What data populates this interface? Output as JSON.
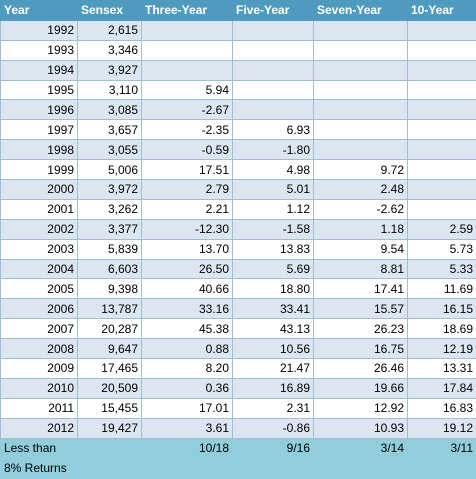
{
  "headers": [
    "Year",
    "Sensex",
    "Three-Year",
    "Five-Year",
    "Seven-Year",
    "10-Year"
  ],
  "rows": [
    [
      "1992",
      "2,615",
      "",
      "",
      "",
      ""
    ],
    [
      "1993",
      "3,346",
      "",
      "",
      "",
      ""
    ],
    [
      "1994",
      "3,927",
      "",
      "",
      "",
      ""
    ],
    [
      "1995",
      "3,110",
      "5.94",
      "",
      "",
      ""
    ],
    [
      "1996",
      "3,085",
      "-2.67",
      "",
      "",
      ""
    ],
    [
      "1997",
      "3,657",
      "-2.35",
      "6.93",
      "",
      ""
    ],
    [
      "1998",
      "3,055",
      "-0.59",
      "-1.80",
      "",
      ""
    ],
    [
      "1999",
      "5,006",
      "17.51",
      "4.98",
      "9.72",
      ""
    ],
    [
      "2000",
      "3,972",
      "2.79",
      "5.01",
      "2.48",
      ""
    ],
    [
      "2001",
      "3,262",
      "2.21",
      "1.12",
      "-2.62",
      ""
    ],
    [
      "2002",
      "3,377",
      "-12.30",
      "-1.58",
      "1.18",
      "2.59"
    ],
    [
      "2003",
      "5,839",
      "13.70",
      "13.83",
      "9.54",
      "5.73"
    ],
    [
      "2004",
      "6,603",
      "26.50",
      "5.69",
      "8.81",
      "5.33"
    ],
    [
      "2005",
      "9,398",
      "40.66",
      "18.80",
      "17.41",
      "11.69"
    ],
    [
      "2006",
      "13,787",
      "33.16",
      "33.41",
      "15.57",
      "16.15"
    ],
    [
      "2007",
      "20,287",
      "45.38",
      "43.13",
      "26.23",
      "18.69"
    ],
    [
      "2008",
      "9,647",
      "0.88",
      "10.56",
      "16.75",
      "12.19"
    ],
    [
      "2009",
      "17,465",
      "8.20",
      "21.47",
      "26.46",
      "13.31"
    ],
    [
      "2010",
      "20,509",
      "0.36",
      "16.89",
      "19.66",
      "17.84"
    ],
    [
      "2011",
      "15,455",
      "17.01",
      "2.31",
      "12.92",
      "16.83"
    ],
    [
      "2012",
      "19,427",
      "3.61",
      "-0.86",
      "10.93",
      "19.12"
    ]
  ],
  "footer": {
    "label_line1": "Less than",
    "label_line2": "8% Returns",
    "values": [
      "",
      "10/18",
      "9/16",
      "3/14",
      "3/11"
    ]
  }
}
